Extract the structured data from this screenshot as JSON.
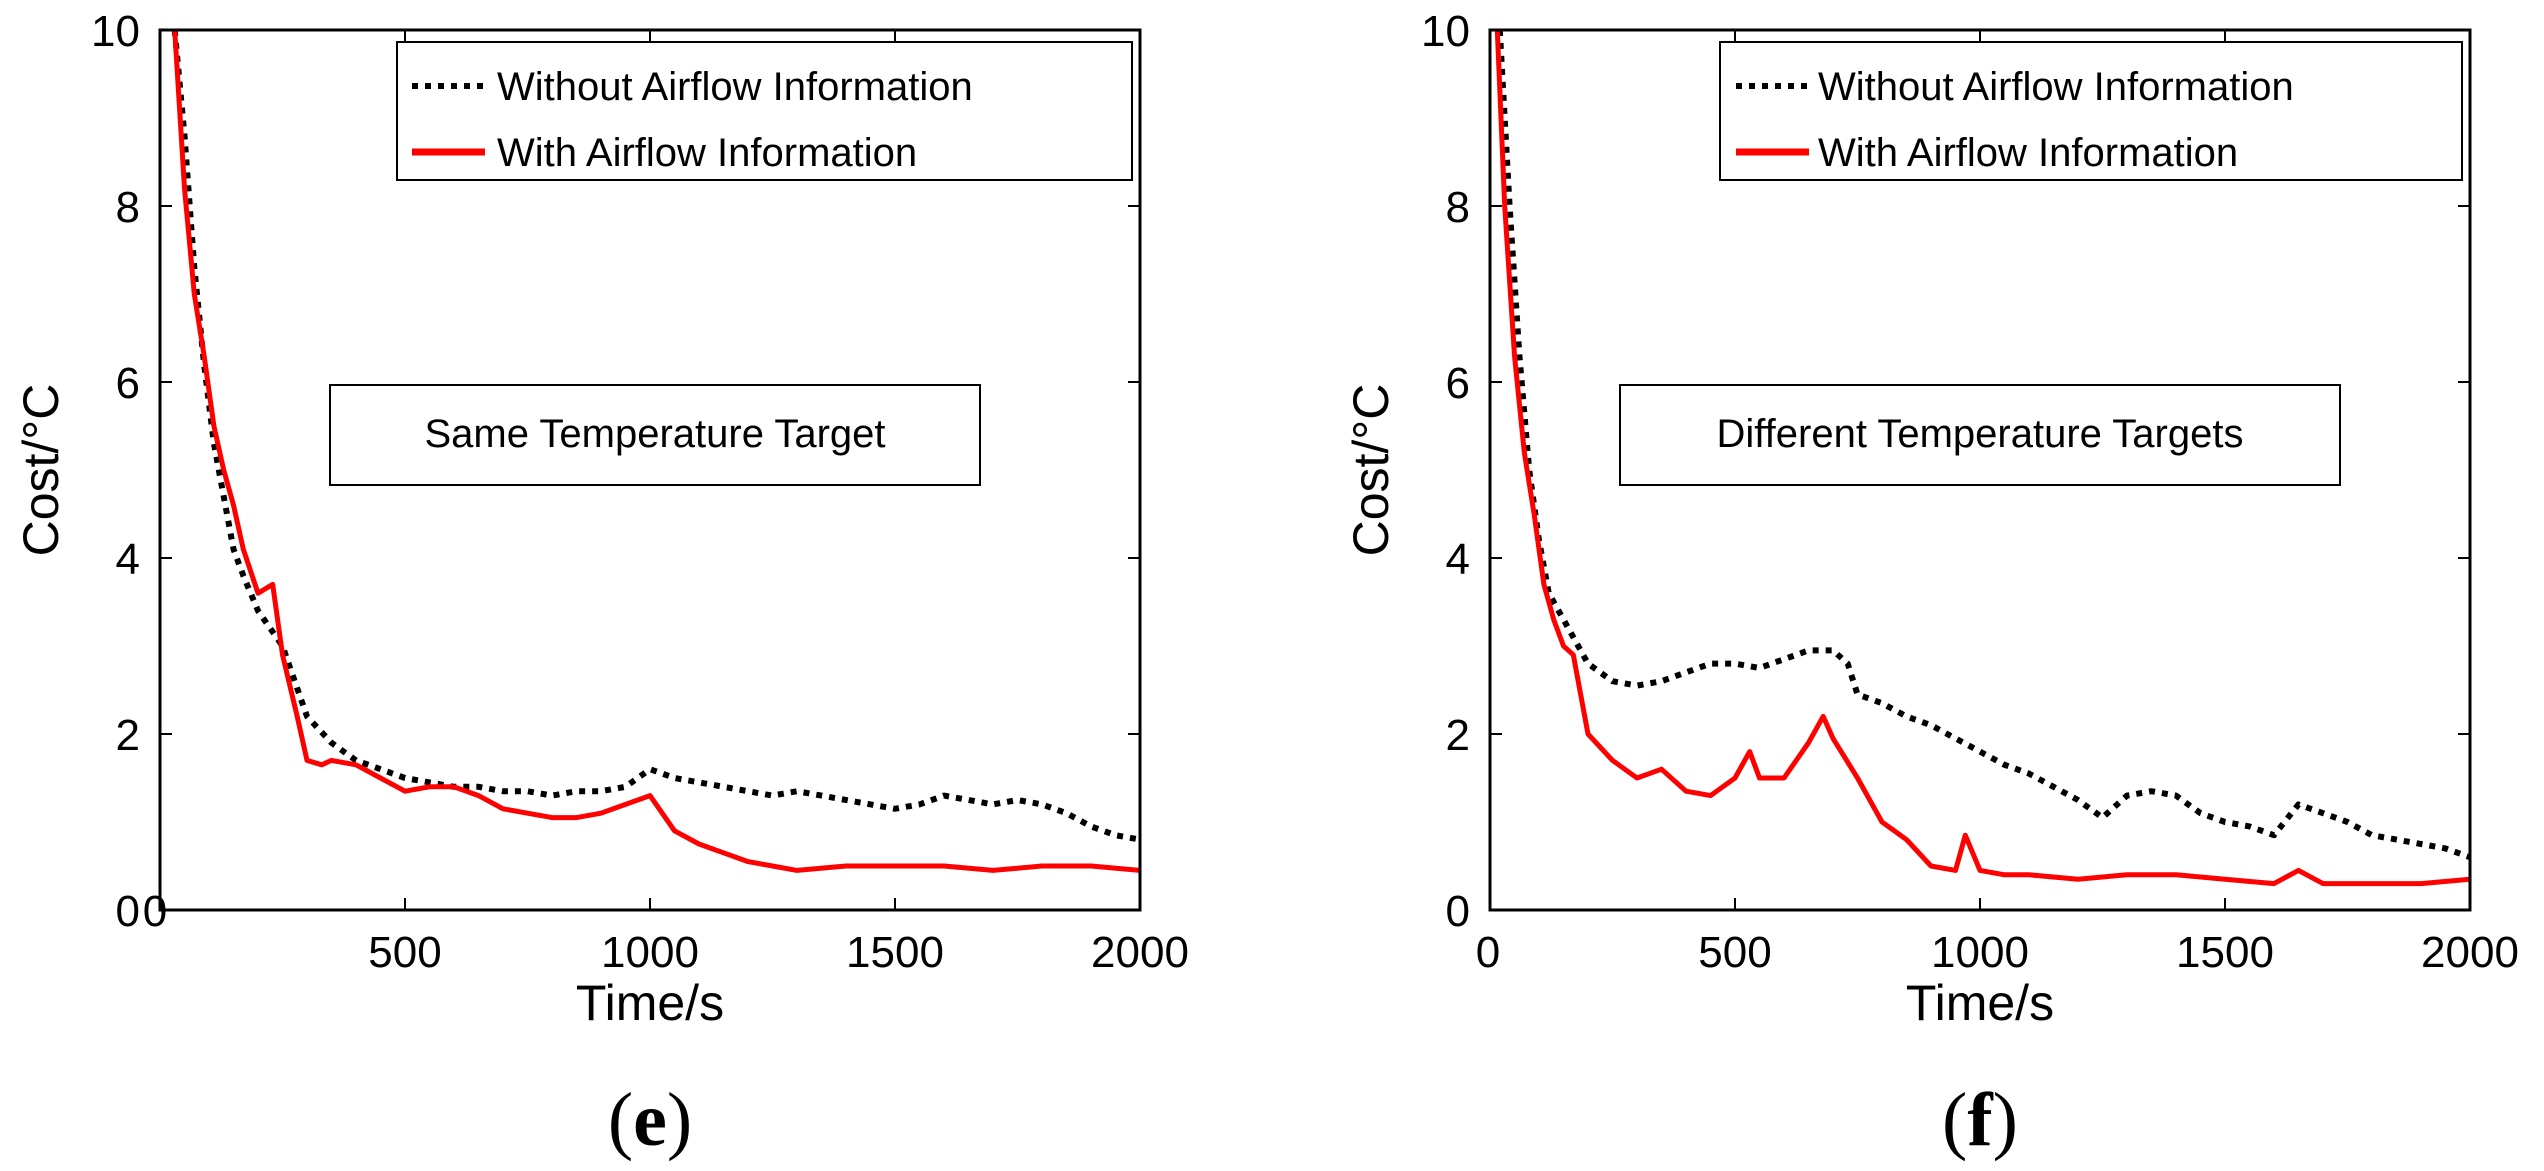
{
  "chart_data": [
    {
      "type": "line",
      "panel_label": "e",
      "xlabel": "Time/s",
      "ylabel": "Cost/°C",
      "xlim": [
        0,
        2000
      ],
      "ylim": [
        0,
        10
      ],
      "xticks": [
        0,
        500,
        1000,
        1500,
        2000
      ],
      "yticks": [
        0,
        2,
        4,
        6,
        8,
        10
      ],
      "xtick_labels": [
        "0",
        "500",
        "1000",
        "1500",
        "2000"
      ],
      "ytick_labels": [
        "0",
        "2",
        "4",
        "6",
        "8",
        "10"
      ],
      "annotation": "Same Temperature Target",
      "legend_position": "top-right",
      "series": [
        {
          "name": "Without Airflow Information",
          "style": "dotted",
          "color": "#000000",
          "x": [
            30,
            50,
            70,
            90,
            110,
            130,
            150,
            170,
            200,
            250,
            300,
            350,
            400,
            450,
            500,
            550,
            600,
            650,
            700,
            750,
            800,
            850,
            900,
            950,
            1000,
            1050,
            1100,
            1150,
            1200,
            1250,
            1300,
            1350,
            1400,
            1450,
            1500,
            1550,
            1600,
            1650,
            1700,
            1750,
            1800,
            1850,
            1900,
            1950,
            2000
          ],
          "y": [
            10,
            8.8,
            7.3,
            6.2,
            5.3,
            4.7,
            4.1,
            3.8,
            3.4,
            3.0,
            2.2,
            1.9,
            1.7,
            1.6,
            1.5,
            1.45,
            1.4,
            1.4,
            1.35,
            1.35,
            1.3,
            1.35,
            1.35,
            1.4,
            1.6,
            1.5,
            1.45,
            1.4,
            1.35,
            1.3,
            1.35,
            1.3,
            1.25,
            1.2,
            1.15,
            1.2,
            1.3,
            1.25,
            1.2,
            1.25,
            1.2,
            1.1,
            0.95,
            0.85,
            0.8
          ]
        },
        {
          "name": "With Airflow Information",
          "style": "solid",
          "color": "#ff0000",
          "x": [
            30,
            50,
            70,
            90,
            110,
            130,
            150,
            170,
            200,
            230,
            250,
            280,
            300,
            330,
            350,
            400,
            450,
            500,
            550,
            600,
            650,
            700,
            750,
            800,
            850,
            900,
            950,
            1000,
            1050,
            1100,
            1150,
            1200,
            1250,
            1300,
            1400,
            1500,
            1600,
            1700,
            1800,
            1900,
            2000
          ],
          "y": [
            10,
            8.2,
            7.0,
            6.3,
            5.5,
            5.0,
            4.6,
            4.1,
            3.6,
            3.7,
            2.9,
            2.2,
            1.7,
            1.65,
            1.7,
            1.65,
            1.5,
            1.35,
            1.4,
            1.4,
            1.3,
            1.15,
            1.1,
            1.05,
            1.05,
            1.1,
            1.2,
            1.3,
            0.9,
            0.75,
            0.65,
            0.55,
            0.5,
            0.45,
            0.5,
            0.5,
            0.5,
            0.45,
            0.5,
            0.5,
            0.45
          ]
        }
      ]
    },
    {
      "type": "line",
      "panel_label": "f",
      "xlabel": "Time/s",
      "ylabel": "Cost/°C",
      "xlim": [
        0,
        2000
      ],
      "ylim": [
        0,
        10
      ],
      "xticks": [
        0,
        500,
        1000,
        1500,
        2000
      ],
      "yticks": [
        0,
        2,
        4,
        6,
        8,
        10
      ],
      "xtick_labels": [
        "0",
        "500",
        "1000",
        "1500",
        "2000"
      ],
      "ytick_labels": [
        "0",
        "2",
        "4",
        "6",
        "8",
        "10"
      ],
      "annotation": "Different Temperature Targets",
      "legend_position": "top-right",
      "series": [
        {
          "name": "Without Airflow Information",
          "style": "dotted",
          "color": "#000000",
          "x": [
            20,
            40,
            60,
            80,
            100,
            120,
            150,
            180,
            200,
            250,
            300,
            350,
            400,
            450,
            500,
            550,
            600,
            650,
            700,
            730,
            750,
            800,
            850,
            900,
            950,
            1000,
            1050,
            1100,
            1150,
            1200,
            1250,
            1300,
            1350,
            1400,
            1450,
            1500,
            1550,
            1600,
            1650,
            1700,
            1750,
            1800,
            1850,
            1900,
            1950,
            2000
          ],
          "y": [
            10,
            8.0,
            6.3,
            5.0,
            4.2,
            3.6,
            3.3,
            3.0,
            2.8,
            2.6,
            2.55,
            2.6,
            2.7,
            2.8,
            2.8,
            2.75,
            2.85,
            2.95,
            2.95,
            2.8,
            2.45,
            2.35,
            2.2,
            2.1,
            1.95,
            1.8,
            1.65,
            1.55,
            1.4,
            1.25,
            1.05,
            1.3,
            1.35,
            1.3,
            1.1,
            1.0,
            0.95,
            0.85,
            1.2,
            1.1,
            1.0,
            0.85,
            0.8,
            0.75,
            0.7,
            0.6
          ]
        },
        {
          "name": "With Airflow Information",
          "style": "solid",
          "color": "#ff0000",
          "x": [
            15,
            30,
            50,
            70,
            90,
            110,
            130,
            150,
            170,
            200,
            250,
            300,
            350,
            400,
            450,
            500,
            530,
            550,
            600,
            650,
            680,
            700,
            750,
            800,
            850,
            900,
            950,
            970,
            1000,
            1050,
            1100,
            1200,
            1300,
            1400,
            1500,
            1600,
            1650,
            1700,
            1800,
            1900,
            2000
          ],
          "y": [
            10,
            8.0,
            6.3,
            5.2,
            4.5,
            3.7,
            3.3,
            3.0,
            2.9,
            2.0,
            1.7,
            1.5,
            1.6,
            1.35,
            1.3,
            1.5,
            1.8,
            1.5,
            1.5,
            1.9,
            2.2,
            1.95,
            1.5,
            1.0,
            0.8,
            0.5,
            0.45,
            0.85,
            0.45,
            0.4,
            0.4,
            0.35,
            0.4,
            0.4,
            0.35,
            0.3,
            0.45,
            0.3,
            0.3,
            0.3,
            0.35
          ]
        }
      ]
    }
  ]
}
